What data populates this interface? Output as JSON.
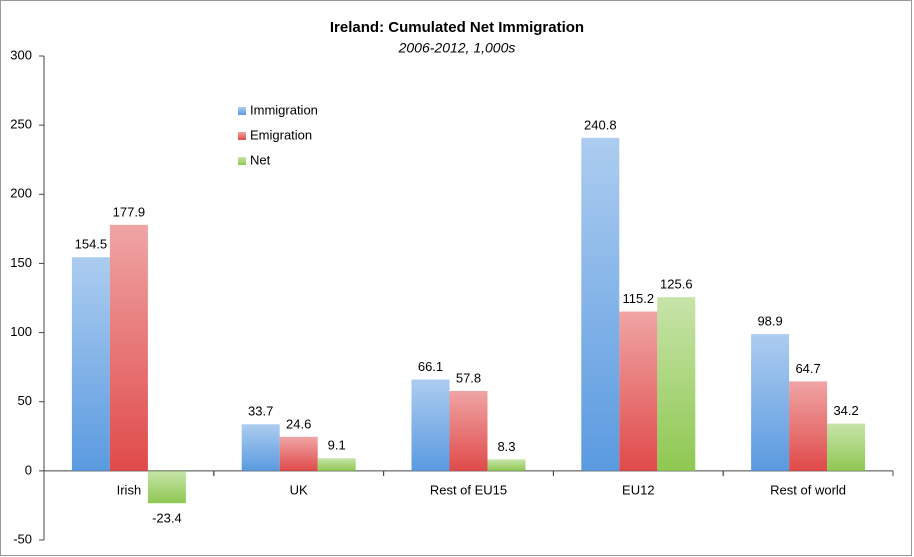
{
  "chart_data": {
    "type": "bar",
    "title": "Ireland: Cumulated Net Immigration",
    "subtitle": "2006-2012, 1,000s",
    "categories": [
      "Irish",
      "UK",
      "Rest of EU15",
      "EU12",
      "Rest of world"
    ],
    "series": [
      {
        "name": "Immigration",
        "color": "#5a9ae0",
        "values": [
          154.5,
          33.7,
          66.1,
          240.8,
          98.9
        ]
      },
      {
        "name": "Emigration",
        "color": "#e04a4a",
        "values": [
          177.9,
          24.6,
          57.8,
          115.2,
          64.7
        ]
      },
      {
        "name": "Net",
        "color": "#8fc852",
        "values": [
          -23.4,
          9.1,
          8.3,
          125.6,
          34.2
        ]
      }
    ],
    "ylim": [
      -50,
      300
    ],
    "yticks": [
      -50,
      0,
      50,
      100,
      150,
      200,
      250,
      300
    ],
    "grid": false,
    "legend": "upper left"
  }
}
